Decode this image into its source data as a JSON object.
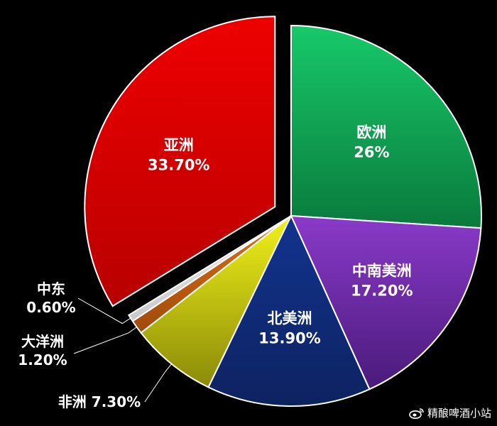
{
  "chart_data": {
    "type": "pie",
    "slices": [
      {
        "name": "欧洲",
        "value": 26,
        "value_label": "26%",
        "color_light": "#17c96a",
        "color_dark": "#0a7a3c",
        "label_mode": "inside",
        "exploded": false
      },
      {
        "name": "中南美洲",
        "value": 17.2,
        "value_label": "17.20%",
        "color_light": "#8a3ac9",
        "color_dark": "#4a1a7a",
        "label_mode": "inside",
        "exploded": false
      },
      {
        "name": "北美洲",
        "value": 13.9,
        "value_label": "13.90%",
        "color_light": "#12348f",
        "color_dark": "#0d2260",
        "label_mode": "inside",
        "exploded": false
      },
      {
        "name": "非洲",
        "value": 7.3,
        "value_label": "7.30%",
        "color_light": "#f2f21a",
        "color_dark": "#8a8a08",
        "label_mode": "outside-inline",
        "exploded": false
      },
      {
        "name": "大洋洲",
        "value": 1.2,
        "value_label": "1.20%",
        "color_light": "#e0701a",
        "color_dark": "#a04a0a",
        "label_mode": "outside",
        "exploded": false
      },
      {
        "name": "中东",
        "value": 0.6,
        "value_label": "0.60%",
        "color_light": "#f0f0f0",
        "color_dark": "#c8c8c8",
        "label_mode": "outside",
        "exploded": false
      },
      {
        "name": "亚洲",
        "value": 33.7,
        "value_label": "33.70%",
        "color_light": "#ee0000",
        "color_dark": "#b80000",
        "label_mode": "inside",
        "exploded": true
      }
    ]
  },
  "watermark": {
    "text": "精酿啤酒小站",
    "icon": "weibo-icon"
  }
}
